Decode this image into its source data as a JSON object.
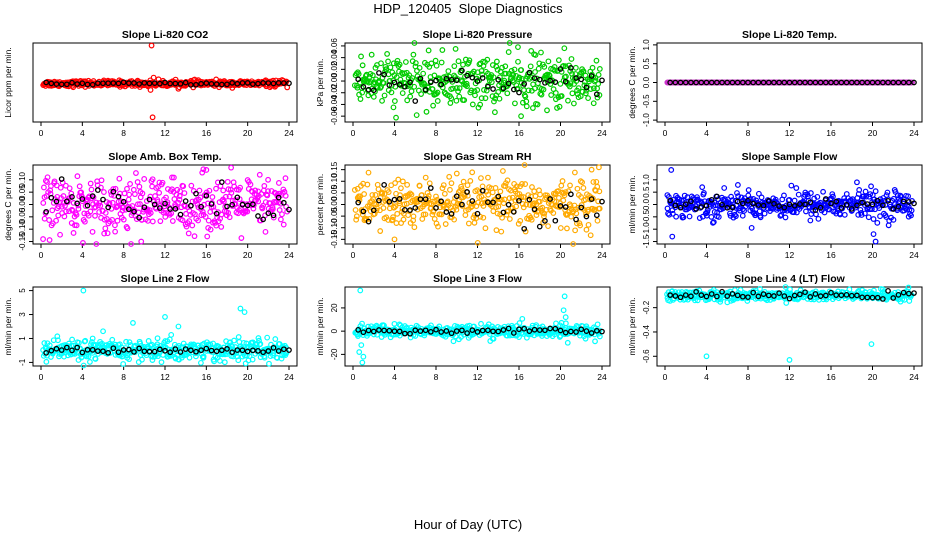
{
  "figure": {
    "title": "HDP_120405  Slope Diagnostics",
    "xlabel": "Hour of Day (UTC)",
    "median_color": "#000000"
  },
  "chart_data": [
    {
      "type": "scatter",
      "title": "Slope Li-820 CO2",
      "ylabel": "Licor ppm per min.",
      "color": "#ff0000",
      "xlim": [
        0,
        24
      ],
      "xticks": [
        0,
        4,
        8,
        12,
        16,
        20,
        24
      ],
      "ylim": [
        -9,
        9.5
      ],
      "yticks": [],
      "noise": 0.35,
      "median_noise": 0.15,
      "outliers": [
        [
          10.7,
          8.9
        ],
        [
          10.8,
          -7.9
        ],
        [
          10.6,
          -1.5
        ],
        [
          10.9,
          1.4
        ]
      ]
    },
    {
      "type": "scatter",
      "title": "Slope Li-820 Pressure",
      "ylabel": "kPa per min.",
      "color": "#00cc00",
      "xlim": [
        0,
        24
      ],
      "xticks": [
        0,
        4,
        8,
        12,
        16,
        20,
        24
      ],
      "ylim": [
        -0.07,
        0.065
      ],
      "yticks": [
        -0.06,
        -0.04,
        -0.02,
        0.0,
        0.02,
        0.04,
        0.06
      ],
      "noise": 0.022,
      "median_noise": 0.012,
      "outliers": [
        [
          1.8,
          0.045
        ],
        [
          3.9,
          -0.045
        ],
        [
          15.9,
          0.058
        ],
        [
          16.2,
          -0.06
        ],
        [
          18.7,
          -0.05
        ]
      ]
    },
    {
      "type": "scatter",
      "title": "Slope Li-820 Temp.",
      "ylabel": "degrees C per min.",
      "color": "#cc33cc",
      "xlim": [
        0,
        24
      ],
      "xticks": [
        0,
        4,
        8,
        12,
        16,
        20,
        24
      ],
      "ylim": [
        -1.05,
        1.05
      ],
      "yticks": [
        -1.0,
        -0.5,
        0.0,
        0.5,
        1.0
      ],
      "noise": 0.0,
      "median_noise": 0.0,
      "outliers": []
    },
    {
      "type": "scatter",
      "title": "Slope Amb. Box Temp.",
      "ylabel": "degrees C per min.",
      "color": "#ff00ff",
      "xlim": [
        0,
        24
      ],
      "xticks": [
        0,
        4,
        8,
        12,
        16,
        20,
        24
      ],
      "ylim": [
        -0.16,
        0.16
      ],
      "yticks": [
        -0.15,
        -0.1,
        -0.05,
        0.0,
        0.05,
        0.1
      ],
      "noise": 0.055,
      "median_noise": 0.04,
      "outliers": [
        [
          9.7,
          -0.15
        ],
        [
          16.0,
          0.14
        ],
        [
          0.2,
          -0.14
        ]
      ]
    },
    {
      "type": "scatter",
      "title": "Slope Gas Stream RH",
      "ylabel": "percent per min.",
      "color": "#ffaa00",
      "xlim": [
        0,
        24
      ],
      "xticks": [
        0,
        4,
        8,
        12,
        16,
        20,
        24
      ],
      "ylim": [
        -0.17,
        0.17
      ],
      "yticks": [
        -0.15,
        -0.1,
        -0.05,
        0.0,
        0.05,
        0.1,
        0.15
      ],
      "noise": 0.055,
      "median_noise": 0.04,
      "outliers": [
        [
          4.0,
          -0.15
        ],
        [
          23.7,
          0.16
        ],
        [
          23.0,
          0.15
        ]
      ]
    },
    {
      "type": "scatter",
      "title": "Slope Sample Flow",
      "ylabel": "ml/min per min.",
      "color": "#0000ff",
      "xlim": [
        0,
        24
      ],
      "xticks": [
        0,
        4,
        8,
        12,
        16,
        20,
        24
      ],
      "ylim": [
        -1.6,
        1.6
      ],
      "yticks": [
        -1.5,
        -1.0,
        -0.5,
        0.0,
        0.5,
        1.0
      ],
      "noise": 0.28,
      "median_noise": 0.12,
      "outliers": [
        [
          0.6,
          1.4
        ],
        [
          0.7,
          -1.3
        ],
        [
          20.3,
          -1.5
        ],
        [
          20.1,
          -1.2
        ],
        [
          18.5,
          0.9
        ]
      ]
    },
    {
      "type": "scatter",
      "title": "Slope Line 2 Flow",
      "ylabel": "ml/min per min.",
      "color": "#00ffff",
      "xlim": [
        0,
        24
      ],
      "xticks": [
        0,
        4,
        8,
        12,
        16,
        20,
        24
      ],
      "ylim": [
        -1.3,
        5.3
      ],
      "yticks": [
        -1,
        1,
        3,
        5
      ],
      "noise": 0.45,
      "median_noise": 0.1,
      "median_offset": 0.0,
      "outliers": [
        [
          4.1,
          5.0
        ],
        [
          12.0,
          2.8
        ],
        [
          12.6,
          1.3
        ],
        [
          13.3,
          2.0
        ],
        [
          19.3,
          3.5
        ],
        [
          19.7,
          3.2
        ],
        [
          8.9,
          2.3
        ],
        [
          5.0,
          1.0
        ]
      ]
    },
    {
      "type": "scatter",
      "title": "Slope Line 3 Flow",
      "ylabel": "ml/min per min.",
      "color": "#00ffff",
      "xlim": [
        0,
        24
      ],
      "xticks": [
        0,
        4,
        8,
        12,
        16,
        20,
        24
      ],
      "ylim": [
        -30,
        38
      ],
      "yticks": [
        -20,
        0,
        20
      ],
      "noise": 2.8,
      "median_noise": 1.2,
      "outliers": [
        [
          0.6,
          -18
        ],
        [
          0.8,
          -12
        ],
        [
          0.9,
          -27
        ],
        [
          0.7,
          35
        ],
        [
          1.0,
          -22
        ],
        [
          20.3,
          18
        ],
        [
          20.5,
          12
        ],
        [
          20.7,
          -10
        ],
        [
          20.0,
          -4
        ],
        [
          20.4,
          30
        ]
      ]
    },
    {
      "type": "scatter",
      "title": "Slope Line 4 (LT) Flow",
      "ylabel": "ml/min per min.",
      "color": "#00ffff",
      "xlim": [
        0,
        24
      ],
      "xticks": [
        0,
        4,
        8,
        12,
        16,
        20,
        24
      ],
      "ylim": [
        -0.68,
        -0.03
      ],
      "yticks": [
        -0.6,
        -0.4,
        -0.2
      ],
      "noise": 0.022,
      "median_noise": 0.012,
      "center": -0.1,
      "outliers": [
        [
          4.0,
          -0.6
        ],
        [
          12.0,
          -0.63
        ],
        [
          19.9,
          -0.5
        ],
        [
          21.0,
          -0.05
        ]
      ]
    }
  ]
}
